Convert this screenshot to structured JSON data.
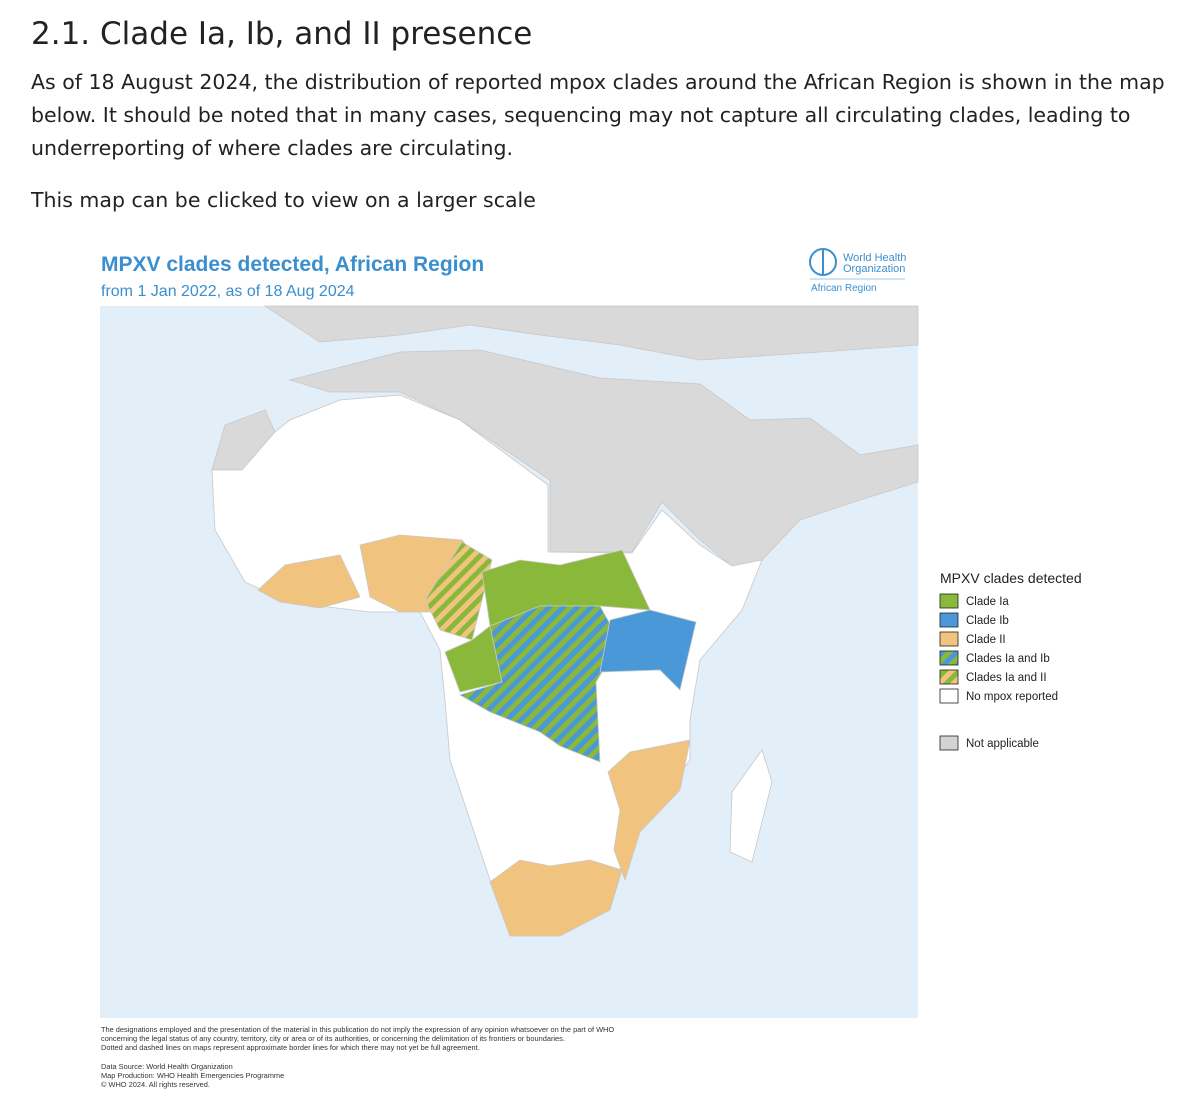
{
  "heading": "2.1. Clade Ia, Ib, and II presence",
  "paragraph": "As of 18 August 2024, the distribution of reported mpox clades around the African Region is shown in the map below. It should be noted that in many cases, sequencing may not capture all circulating clades, leading to underreporting of where clades are circulating.",
  "note": "This map can be clicked to view on a larger scale",
  "map": {
    "title": "MPXV clades detected, African Region",
    "subtitle": "from 1 Jan 2022, as of 18 Aug 2024",
    "logo": {
      "line1": "World Health",
      "line2": "Organization",
      "region": "African Region"
    },
    "legend": {
      "title": "MPXV clades detected",
      "items": [
        {
          "label": "Clade Ia",
          "colors": [
            "#8ab83a"
          ]
        },
        {
          "label": "Clade Ib",
          "colors": [
            "#4a98d8"
          ]
        },
        {
          "label": "Clade II",
          "colors": [
            "#f0c47f"
          ]
        },
        {
          "label": "Clades Ia and Ib",
          "colors": [
            "#8ab83a",
            "#4a98d8"
          ]
        },
        {
          "label": "Clades Ia and II",
          "colors": [
            "#8ab83a",
            "#f0c47f"
          ]
        },
        {
          "label": "No mpox reported",
          "colors": [
            "#ffffff"
          ]
        },
        {
          "label": "Not applicable",
          "colors": [
            "#d3d3d3"
          ]
        }
      ]
    },
    "disclaimer": [
      "The designations employed and the presentation of the material in this publication do not imply the expression of any opinion whatsoever on the part of WHO",
      "concerning the legal status of any country, territory, city or area or of its authorities, or concerning the delimitation of its frontiers or boundaries.",
      "Dotted and dashed lines on maps represent approximate border lines for which there may not yet be full agreement."
    ],
    "credits": [
      "Data Source: World Health Organization",
      "Map Production: WHO Health Emergencies Programme",
      "© WHO 2024. All rights reserved."
    ]
  }
}
